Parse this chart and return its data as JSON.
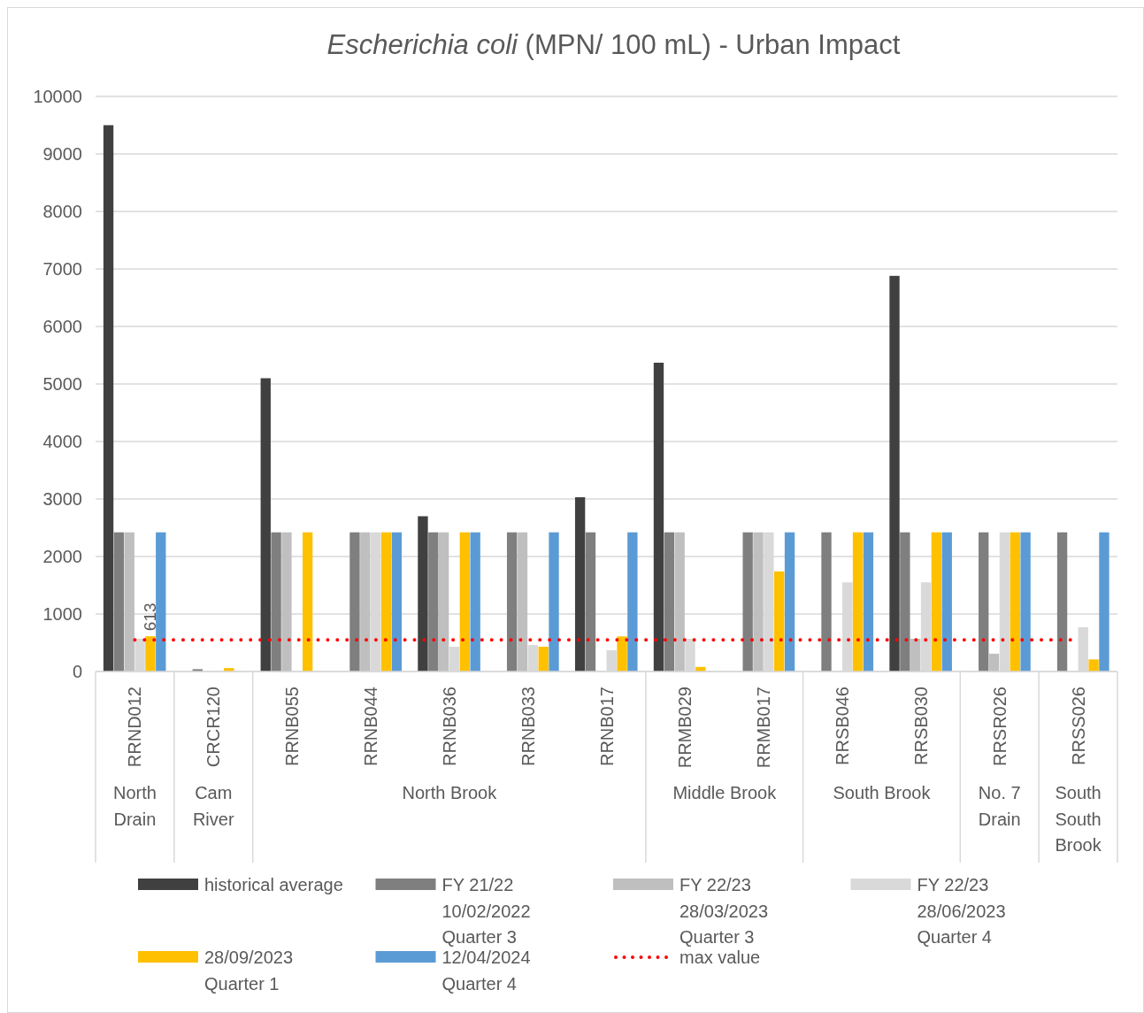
{
  "chart_data": {
    "type": "bar",
    "title": "Escherichia coli (MPN/ 100 mL) - Urban Impact",
    "categories": [
      "RRND012",
      "CRCR120",
      "RRNB055",
      "RRNB044",
      "RRNB036",
      "RRNB033",
      "RRNB017",
      "RRMB029",
      "RRMB017",
      "RRSB046",
      "RRSB030",
      "RRSR026",
      "RRSS026"
    ],
    "annotations": [
      "North Drain",
      "Cam River",
      "North Brook",
      "Middle Brook",
      "South Brook",
      "No. 7 Drain",
      "South South Brook"
    ],
    "series": [
      {
        "name": "historical average",
        "color": "#404040",
        "values": [
          9500,
          null,
          5100,
          null,
          2700,
          null,
          3030,
          5370,
          null,
          null,
          6880,
          null,
          null
        ]
      },
      {
        "name": "FY 21/22 10/02/2022 Quarter 3",
        "color": "#7f7f7f",
        "values": [
          2420,
          40,
          2420,
          2420,
          2420,
          2420,
          2420,
          2420,
          2420,
          2420,
          2420,
          2420,
          2420
        ]
      },
      {
        "name": "FY 22/23 28/03/2023 Quarter 3",
        "color": "#bfbfbf",
        "values": [
          2420,
          null,
          2420,
          2420,
          2420,
          2420,
          null,
          2420,
          2420,
          null,
          570,
          310,
          null
        ]
      },
      {
        "name": "FY 22/23 28/06/2023 Quarter 4",
        "color": "#d9d9d9",
        "values": [
          570,
          null,
          null,
          2420,
          430,
          460,
          370,
          570,
          2420,
          1550,
          1550,
          2420,
          770
        ]
      },
      {
        "name": "28/09/2023 Quarter 1",
        "color": "#ffc000",
        "values": [
          613,
          60,
          2420,
          2420,
          2420,
          430,
          610,
          80,
          1740,
          2420,
          2420,
          2420,
          210
        ],
        "value_labels": [
          "613",
          null,
          null,
          null,
          null,
          null,
          null,
          null,
          null,
          null,
          null,
          null,
          null
        ]
      },
      {
        "name": "12/04/2024 Quarter 4",
        "color": "#5b9bd5",
        "values": [
          2420,
          null,
          null,
          2420,
          2420,
          2420,
          2420,
          null,
          2420,
          2420,
          2420,
          2420,
          2420
        ]
      }
    ],
    "ref_lines": [
      {
        "axis": "y",
        "value": 550,
        "label": "max value",
        "color": "#ff0000",
        "line_style": "dotted"
      }
    ],
    "ylim": [
      0,
      10000
    ],
    "yticks": [
      0,
      1000,
      2000,
      3000,
      4000,
      5000,
      6000,
      7000,
      8000,
      9000,
      10000
    ],
    "grid": "y",
    "legend": "bottom"
  }
}
